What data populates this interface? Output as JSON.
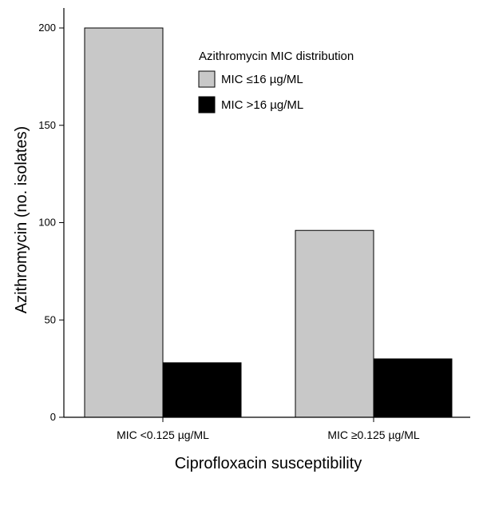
{
  "chart_data": {
    "type": "bar",
    "categories": [
      "MIC <0.125 µg/ML",
      "MIC ≥0.125 µg/ML"
    ],
    "series": [
      {
        "name": "MIC ≤16 µg/ML",
        "values": [
          200,
          96
        ],
        "color": "#c8c8c8"
      },
      {
        "name": "MIC >16 µg/ML",
        "values": [
          28,
          30
        ],
        "color": "#000000"
      }
    ],
    "xlabel": "Ciprofloxacin susceptibility",
    "ylabel": "Azithromycin (no. isolates)",
    "ylim": [
      0,
      210
    ],
    "yticks": [
      0,
      50,
      100,
      150,
      200
    ],
    "legend": {
      "title": "Azithromycin MIC distribution",
      "position": "top-right"
    },
    "grid": false
  }
}
